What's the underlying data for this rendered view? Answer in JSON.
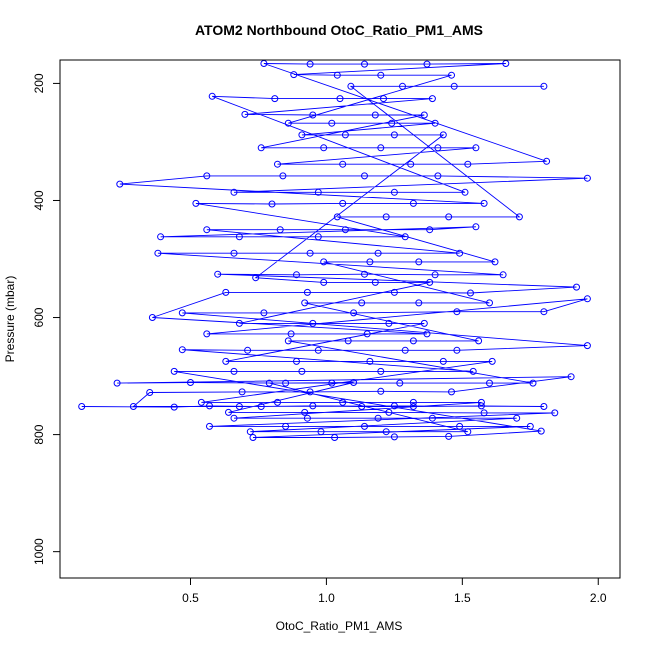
{
  "chart_data": {
    "type": "scatter",
    "title": "ATOM2 Northbound OtoC_Ratio_PM1_AMS",
    "xlabel": "OtoC_Ratio_PM1_AMS",
    "ylabel": "Pressure (mbar)",
    "xlim": [
      0.02,
      2.08
    ],
    "ylim": [
      1045,
      160
    ],
    "y_reversed": true,
    "xticks": [
      "0.5",
      "1.0",
      "1.5",
      "2.0"
    ],
    "yticks": [
      "200",
      "400",
      "600",
      "800",
      "1000"
    ],
    "series_color": "#0000ff",
    "marker": "open-circle",
    "connected": true,
    "series": [
      {
        "values": [
          [
            0.1,
            752
          ],
          [
            0.44,
            753
          ],
          [
            0.57,
            751
          ],
          [
            0.76,
            752
          ],
          [
            0.95,
            751
          ],
          [
            1.13,
            752
          ],
          [
            1.32,
            752
          ],
          [
            1.57,
            751
          ],
          [
            1.8,
            752
          ],
          [
            1.25,
            751
          ],
          [
            0.68,
            752
          ],
          [
            0.29,
            752
          ],
          [
            0.35,
            728
          ],
          [
            0.69,
            727
          ],
          [
            0.94,
            727
          ],
          [
            1.2,
            726
          ],
          [
            1.46,
            727
          ],
          [
            1.9,
            701
          ],
          [
            0.23,
            712
          ],
          [
            0.5,
            711
          ],
          [
            0.85,
            712
          ],
          [
            1.1,
            711
          ],
          [
            0.64,
            762
          ],
          [
            0.92,
            762
          ],
          [
            1.23,
            762
          ],
          [
            1.58,
            763
          ],
          [
            1.84,
            763
          ],
          [
            0.57,
            786
          ],
          [
            0.85,
            786
          ],
          [
            1.14,
            786
          ],
          [
            1.49,
            786
          ],
          [
            1.75,
            786
          ],
          [
            0.73,
            805
          ],
          [
            1.03,
            805
          ],
          [
            1.25,
            804
          ],
          [
            1.45,
            803
          ],
          [
            1.79,
            794
          ],
          [
            0.44,
            692
          ],
          [
            0.66,
            692
          ],
          [
            0.91,
            692
          ],
          [
            1.2,
            692
          ],
          [
            1.54,
            692
          ],
          [
            0.47,
            655
          ],
          [
            0.71,
            656
          ],
          [
            0.97,
            656
          ],
          [
            1.29,
            656
          ],
          [
            1.48,
            656
          ],
          [
            1.96,
            648
          ],
          [
            0.47,
            592
          ],
          [
            0.77,
            592
          ],
          [
            1.1,
            592
          ],
          [
            1.48,
            590
          ],
          [
            1.8,
            590
          ],
          [
            1.96,
            568
          ],
          [
            0.56,
            628
          ],
          [
            0.87,
            628
          ],
          [
            1.15,
            628
          ],
          [
            1.37,
            628
          ],
          [
            0.36,
            600
          ],
          [
            0.63,
            557
          ],
          [
            0.93,
            557
          ],
          [
            1.25,
            557
          ],
          [
            1.53,
            558
          ],
          [
            1.92,
            548
          ],
          [
            0.6,
            526
          ],
          [
            0.89,
            527
          ],
          [
            1.14,
            526
          ],
          [
            1.4,
            527
          ],
          [
            1.65,
            527
          ],
          [
            0.38,
            490
          ],
          [
            0.66,
            490
          ],
          [
            0.94,
            490
          ],
          [
            1.19,
            490
          ],
          [
            1.49,
            490
          ],
          [
            0.56,
            450
          ],
          [
            0.83,
            450
          ],
          [
            1.07,
            450
          ],
          [
            1.38,
            450
          ],
          [
            1.55,
            445
          ],
          [
            0.39,
            462
          ],
          [
            0.68,
            462
          ],
          [
            0.97,
            462
          ],
          [
            1.29,
            462
          ],
          [
            0.52,
            405
          ],
          [
            0.8,
            406
          ],
          [
            1.06,
            405
          ],
          [
            1.32,
            405
          ],
          [
            1.58,
            405
          ],
          [
            0.24,
            372
          ],
          [
            0.56,
            358
          ],
          [
            0.84,
            358
          ],
          [
            1.14,
            358
          ],
          [
            1.41,
            358
          ],
          [
            1.96,
            362
          ],
          [
            0.66,
            386
          ],
          [
            0.97,
            386
          ],
          [
            1.25,
            386
          ],
          [
            1.51,
            386
          ],
          [
            0.58,
            222
          ],
          [
            0.81,
            226
          ],
          [
            1.05,
            226
          ],
          [
            1.21,
            226
          ],
          [
            1.39,
            226
          ],
          [
            0.7,
            253
          ],
          [
            0.95,
            254
          ],
          [
            1.18,
            254
          ],
          [
            1.36,
            254
          ],
          [
            0.76,
            310
          ],
          [
            0.99,
            310
          ],
          [
            1.2,
            310
          ],
          [
            1.41,
            310
          ],
          [
            1.55,
            310
          ],
          [
            0.82,
            338
          ],
          [
            1.06,
            338
          ],
          [
            1.31,
            338
          ],
          [
            1.52,
            338
          ],
          [
            1.81,
            333
          ],
          [
            0.77,
            166
          ],
          [
            0.94,
            167
          ],
          [
            1.14,
            167
          ],
          [
            1.37,
            167
          ],
          [
            1.66,
            166
          ],
          [
            0.88,
            185
          ],
          [
            1.04,
            186
          ],
          [
            1.2,
            186
          ],
          [
            1.46,
            186
          ],
          [
            0.86,
            268
          ],
          [
            1.02,
            268
          ],
          [
            1.24,
            268
          ],
          [
            1.4,
            268
          ],
          [
            0.91,
            288
          ],
          [
            1.07,
            288
          ],
          [
            1.25,
            288
          ],
          [
            1.43,
            288
          ],
          [
            0.74,
            532
          ],
          [
            0.99,
            540
          ],
          [
            1.18,
            540
          ],
          [
            1.38,
            540
          ],
          [
            0.68,
            610
          ],
          [
            0.95,
            610
          ],
          [
            1.23,
            610
          ],
          [
            1.36,
            610
          ],
          [
            0.63,
            675
          ],
          [
            0.89,
            675
          ],
          [
            1.16,
            675
          ],
          [
            1.43,
            675
          ],
          [
            1.61,
            675
          ],
          [
            0.54,
            745
          ],
          [
            0.82,
            745
          ],
          [
            1.06,
            745
          ],
          [
            1.32,
            745
          ],
          [
            1.57,
            745
          ],
          [
            0.66,
            772
          ],
          [
            0.93,
            772
          ],
          [
            1.19,
            772
          ],
          [
            1.39,
            772
          ],
          [
            1.7,
            772
          ],
          [
            0.72,
            795
          ],
          [
            0.98,
            795
          ],
          [
            1.22,
            795
          ],
          [
            1.52,
            795
          ],
          [
            0.79,
            712
          ],
          [
            1.02,
            712
          ],
          [
            1.27,
            712
          ],
          [
            1.6,
            712
          ],
          [
            1.76,
            712
          ],
          [
            0.86,
            640
          ],
          [
            1.08,
            640
          ],
          [
            1.32,
            640
          ],
          [
            1.56,
            640
          ],
          [
            0.92,
            575
          ],
          [
            1.13,
            575
          ],
          [
            1.34,
            575
          ],
          [
            1.6,
            575
          ],
          [
            0.99,
            505
          ],
          [
            1.16,
            505
          ],
          [
            1.34,
            505
          ],
          [
            1.62,
            505
          ],
          [
            1.04,
            428
          ],
          [
            1.22,
            428
          ],
          [
            1.45,
            428
          ],
          [
            1.71,
            428
          ],
          [
            1.09,
            205
          ],
          [
            1.28,
            205
          ],
          [
            1.47,
            205
          ],
          [
            1.8,
            205
          ]
        ]
      }
    ]
  }
}
